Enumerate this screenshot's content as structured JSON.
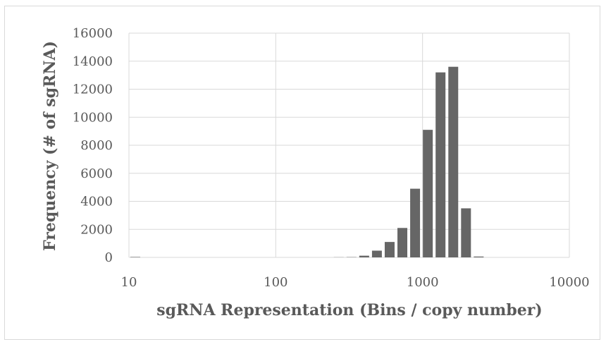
{
  "chart_data": {
    "type": "bar",
    "title": "",
    "xlabel": "sgRNA Representation (Bins / copy number)",
    "ylabel": "Frequency (# of sgRNA)",
    "x_scale": "log",
    "xlim": [
      10,
      10000
    ],
    "ylim": [
      0,
      16000
    ],
    "x_ticks": [
      "10",
      "100",
      "1000",
      "10000"
    ],
    "y_ticks": [
      "0",
      "2000",
      "4000",
      "6000",
      "8000",
      "10000",
      "12000",
      "14000",
      "16000"
    ],
    "grid": true,
    "legend": "none",
    "bar_color": "#666666",
    "bins": [
      10,
      12.2,
      14.9,
      18.2,
      22.2,
      27.1,
      33.1,
      40.4,
      49.3,
      60.2,
      73.5,
      89.7,
      109.5,
      133.7,
      163.2,
      199.2,
      243.2,
      296.9,
      362.5,
      442.6,
      540.3,
      659.7,
      805.4,
      983.3,
      1200.5,
      1465.7,
      1789.4,
      2184.6,
      2667.2,
      3256.3,
      3975.5,
      4853.6,
      5925.7,
      7234.5,
      8832.5
    ],
    "values": [
      30,
      0,
      0,
      0,
      0,
      0,
      0,
      0,
      0,
      0,
      0,
      0,
      0,
      0,
      0,
      0,
      10,
      20,
      120,
      480,
      1100,
      2100,
      4900,
      9100,
      13200,
      13600,
      3500,
      60,
      0,
      0,
      0,
      0,
      0,
      0,
      0
    ]
  }
}
